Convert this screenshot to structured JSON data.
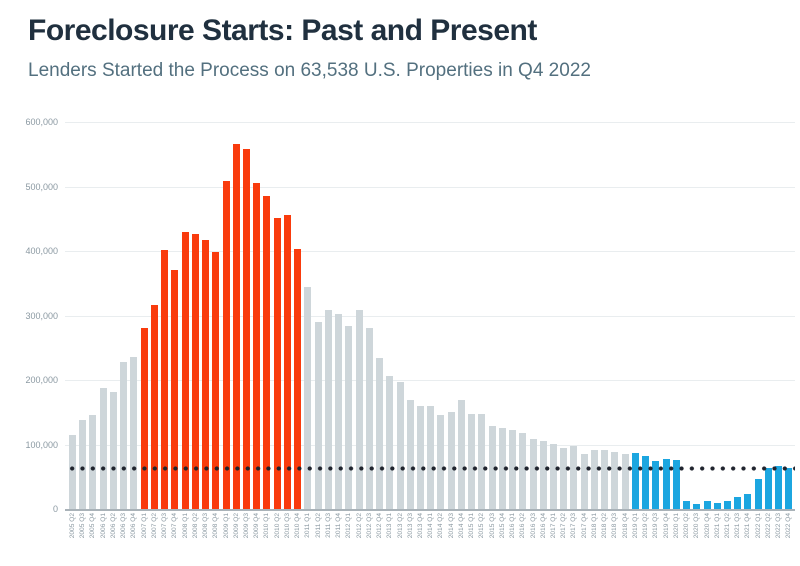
{
  "header": {
    "title": "Foreclosure Starts: Past and Present",
    "subtitle": "Lenders Started the Process on 63,538 U.S. Properties in Q4 2022"
  },
  "chart_data": {
    "type": "bar",
    "title": "Foreclosure Starts: Past and Present",
    "subtitle": "Lenders Started the Process on 63,538 U.S. Properties in Q4 2022",
    "xlabel": "",
    "ylabel": "",
    "ylim": [
      0,
      600000
    ],
    "grid": true,
    "y_ticks": [
      {
        "value": 600000,
        "label": "600,000"
      },
      {
        "value": 500000,
        "label": "500,000"
      },
      {
        "value": 400000,
        "label": "400,000"
      },
      {
        "value": 300000,
        "label": "300,000"
      },
      {
        "value": 200000,
        "label": "200,000"
      },
      {
        "value": 100000,
        "label": "100,000"
      },
      {
        "value": 0,
        "label": "0"
      }
    ],
    "reference_line": {
      "style": "dotted",
      "value": 63538
    },
    "palette": {
      "gray": "#ced6da",
      "red": "#f93b0d",
      "blue": "#1ca6e0",
      "reference_dots": "#20242e"
    },
    "categories": [
      "2005 Q2",
      "2005 Q3",
      "2005 Q4",
      "2006 Q1",
      "2006 Q2",
      "2006 Q3",
      "2006 Q4",
      "2007 Q1",
      "2007 Q2",
      "2007 Q3",
      "2007 Q4",
      "2008 Q1",
      "2008 Q2",
      "2008 Q3",
      "2008 Q4",
      "2009 Q1",
      "2009 Q2",
      "2009 Q3",
      "2009 Q4",
      "2010 Q1",
      "2010 Q2",
      "2010 Q3",
      "2010 Q4",
      "2011 Q1",
      "2011 Q2",
      "2011 Q3",
      "2011 Q4",
      "2012 Q1",
      "2012 Q2",
      "2012 Q3",
      "2012 Q4",
      "2013 Q1",
      "2013 Q2",
      "2013 Q3",
      "2013 Q4",
      "2014 Q1",
      "2014 Q2",
      "2014 Q3",
      "2014 Q4",
      "2015 Q1",
      "2015 Q2",
      "2015 Q3",
      "2015 Q4",
      "2016 Q1",
      "2016 Q2",
      "2016 Q3",
      "2016 Q4",
      "2017 Q1",
      "2017 Q2",
      "2017 Q3",
      "2017 Q4",
      "2018 Q1",
      "2018 Q2",
      "2018 Q3",
      "2018 Q4",
      "2019 Q1",
      "2019 Q2",
      "2019 Q3",
      "2019 Q4",
      "2020 Q1",
      "2020 Q2",
      "2020 Q3",
      "2020 Q4",
      "2021 Q1",
      "2021 Q2",
      "2021 Q3",
      "2021 Q4",
      "2022 Q1",
      "2022 Q2",
      "2022 Q3",
      "2022 Q4"
    ],
    "values": [
      114000,
      138000,
      145000,
      188000,
      182000,
      228000,
      236000,
      280000,
      317000,
      401000,
      371000,
      430000,
      427000,
      417000,
      398000,
      509000,
      566000,
      558000,
      505000,
      485000,
      451000,
      456000,
      403000,
      344000,
      290000,
      308000,
      303000,
      283000,
      308000,
      281000,
      234000,
      207000,
      197000,
      169000,
      159000,
      159000,
      146000,
      151000,
      169000,
      147000,
      147000,
      128000,
      126000,
      123000,
      118000,
      109000,
      105000,
      101000,
      94000,
      97000,
      86000,
      91000,
      92000,
      88000,
      85000,
      87000,
      82000,
      74000,
      77000,
      76000,
      12000,
      8000,
      12000,
      10000,
      12000,
      18000,
      24000,
      46000,
      64000,
      67000,
      63538
    ],
    "colors": [
      "gray",
      "gray",
      "gray",
      "gray",
      "gray",
      "gray",
      "gray",
      "red",
      "red",
      "red",
      "red",
      "red",
      "red",
      "red",
      "red",
      "red",
      "red",
      "red",
      "red",
      "red",
      "red",
      "red",
      "red",
      "gray",
      "gray",
      "gray",
      "gray",
      "gray",
      "gray",
      "gray",
      "gray",
      "gray",
      "gray",
      "gray",
      "gray",
      "gray",
      "gray",
      "gray",
      "gray",
      "gray",
      "gray",
      "gray",
      "gray",
      "gray",
      "gray",
      "gray",
      "gray",
      "gray",
      "gray",
      "gray",
      "gray",
      "gray",
      "gray",
      "gray",
      "gray",
      "blue",
      "blue",
      "blue",
      "blue",
      "blue",
      "blue",
      "blue",
      "blue",
      "blue",
      "blue",
      "blue",
      "blue",
      "blue",
      "blue",
      "blue",
      "blue"
    ],
    "legend": "none"
  }
}
